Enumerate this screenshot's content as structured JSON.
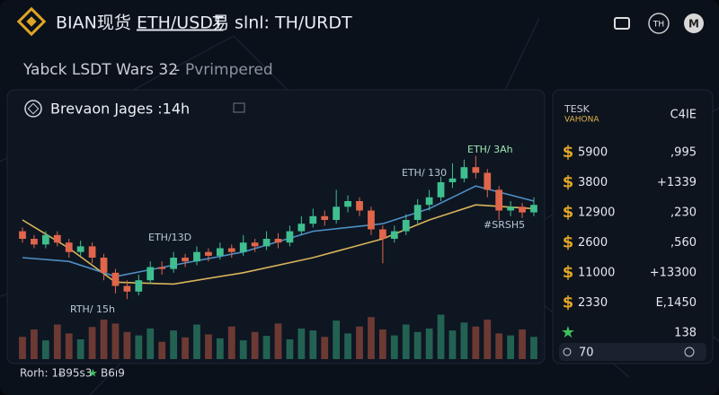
{
  "header": {
    "brand": "BIAN现货",
    "pair": "ETH/USDT",
    "suffix": "易 slnl: TH/URDT",
    "icons": [
      "TH",
      "M"
    ]
  },
  "subtitle": {
    "text": "Yabck LSDT Wars 32",
    "separator": "-",
    "status": "Pvrimpered"
  },
  "panel": {
    "title": "Brevaon Jages :14h"
  },
  "annotations": [
    "ETH/ 3Ah",
    "ETH/ 130",
    "ETH/13D",
    "#SRSH5",
    "RTH/ 15h"
  ],
  "chart_data": {
    "type": "candlestick",
    "open": [
      44,
      40,
      37,
      42,
      38,
      33,
      36,
      30,
      22,
      15,
      12,
      18,
      25,
      24,
      30,
      28,
      33,
      31,
      35,
      33,
      38,
      36,
      40,
      38,
      44,
      48,
      52,
      50,
      57,
      60,
      55,
      45,
      40,
      44,
      50,
      58,
      62,
      70,
      72,
      78,
      75,
      66,
      55,
      57,
      54
    ],
    "high": [
      46,
      42,
      44,
      44,
      40,
      39,
      38,
      32,
      24,
      18,
      21,
      28,
      28,
      33,
      32,
      36,
      35,
      38,
      37,
      42,
      40,
      44,
      43,
      47,
      52,
      56,
      55,
      66,
      63,
      62,
      57,
      47,
      47,
      53,
      61,
      66,
      73,
      80,
      82,
      84,
      77,
      68,
      60,
      59,
      62
    ],
    "low": [
      38,
      35,
      35,
      36,
      30,
      31,
      27,
      18,
      11,
      8,
      10,
      16,
      21,
      22,
      25,
      26,
      28,
      29,
      30,
      31,
      33,
      34,
      35,
      36,
      42,
      46,
      47,
      48,
      54,
      52,
      42,
      27,
      38,
      42,
      48,
      55,
      60,
      67,
      70,
      72,
      62,
      50,
      52,
      51,
      52
    ],
    "close": [
      40,
      37,
      42,
      38,
      33,
      36,
      30,
      22,
      15,
      12,
      18,
      25,
      24,
      30,
      28,
      33,
      31,
      35,
      33,
      38,
      36,
      40,
      38,
      44,
      48,
      52,
      50,
      57,
      60,
      55,
      45,
      40,
      44,
      50,
      58,
      62,
      70,
      72,
      78,
      75,
      66,
      55,
      57,
      54,
      58
    ],
    "volume": [
      45,
      60,
      38,
      70,
      52,
      40,
      65,
      80,
      72,
      55,
      48,
      62,
      35,
      58,
      44,
      70,
      50,
      42,
      66,
      38,
      55,
      47,
      72,
      40,
      62,
      58,
      45,
      78,
      52,
      66,
      85,
      60,
      48,
      70,
      55,
      62,
      90,
      58,
      74,
      66,
      80,
      52,
      48,
      60,
      45
    ],
    "ylim": [
      0,
      100
    ],
    "volume_lim": [
      0,
      100
    ],
    "colors": {
      "up": "#3fbf8f",
      "down": "#e0654a"
    },
    "lines": [
      {
        "color": "#d9b45a",
        "x": [
          1,
          5,
          9,
          14,
          20,
          26,
          32,
          36,
          40,
          45
        ],
        "values": [
          50,
          35,
          17,
          16,
          22,
          30,
          40,
          50,
          58,
          56
        ]
      },
      {
        "color": "#4f8fc4",
        "x": [
          1,
          5,
          9,
          14,
          20,
          26,
          32,
          36,
          40,
          45
        ],
        "values": [
          30,
          28,
          20,
          26,
          33,
          44,
          48,
          56,
          68,
          60
        ]
      }
    ]
  },
  "sidebar": {
    "col1": "TESK",
    "col1_sub": "VAHONA",
    "col2": "C4IE",
    "rows": [
      {
        "icon": "$",
        "label": "5900",
        "value": ",995"
      },
      {
        "icon": "$",
        "label": "3800",
        "value": "+1339"
      },
      {
        "icon": "$",
        "label": "12900",
        "value": ",230"
      },
      {
        "icon": "$",
        "label": "2600",
        "value": ",560"
      },
      {
        "icon": "$",
        "label": "11000",
        "value": "+13300"
      },
      {
        "icon": "$",
        "label": "2330",
        "value": "E,1450"
      },
      {
        "icon": "★",
        "label": "",
        "value": "138"
      }
    ],
    "footer_value": "70"
  },
  "footer": {
    "text": "Rorh: 1Ƀ95s3",
    "star": "★",
    "value": "B6ı9"
  }
}
